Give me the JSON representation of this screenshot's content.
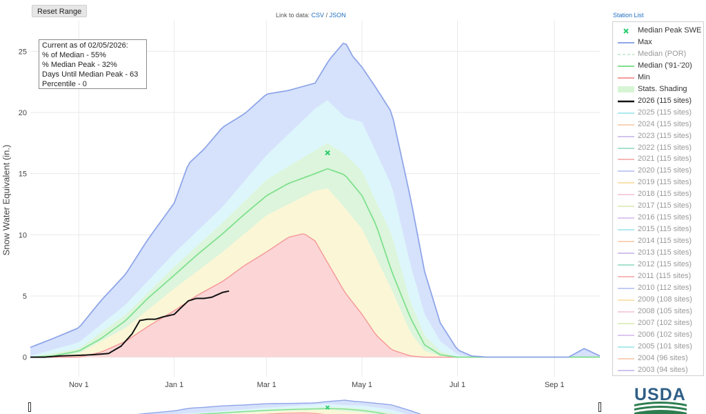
{
  "controls": {
    "reset_range_label": "Reset Range",
    "link_prefix": "Link to data: ",
    "csv_label": "CSV",
    "link_sep": " / ",
    "json_label": "JSON",
    "station_list_label": "Station List"
  },
  "info_box": {
    "lines": [
      "Current as of 02/05/2026:",
      "% of Median - 55%",
      "% Median Peak - 32%",
      "Days Until Median Peak - 63",
      "Percentile - 0"
    ]
  },
  "logo": {
    "text": "USDA"
  },
  "colors": {
    "max": "#8fa5e8",
    "max_fill": "#d6e2fb",
    "p90_fill": "#dcf6fb",
    "p70_fill": "#dcf5dc",
    "p30_fill": "#fbf6d6",
    "min": "#f59a9a",
    "min_fill": "#fcd6d6",
    "median": "#7fe08e",
    "current": "#111111",
    "median_peak": "#2ecc71",
    "grid": "#e9e9e9"
  },
  "legend": [
    {
      "label": "Median Peak SWE",
      "type": "marker",
      "color": "#2ecc71",
      "muted": false
    },
    {
      "label": "Max",
      "type": "line",
      "color": "#8fa5e8",
      "muted": false
    },
    {
      "label": "Median (POR)",
      "type": "dash",
      "color": "#b9e6c0",
      "muted": true
    },
    {
      "label": "Median ('91-'20)",
      "type": "line",
      "color": "#7fe08e",
      "muted": false
    },
    {
      "label": "Min",
      "type": "line",
      "color": "#f59a9a",
      "muted": false
    },
    {
      "label": "Stats. Shading",
      "type": "fill",
      "color": "#d7f5d4",
      "muted": false
    },
    {
      "label": "2026 (115 sites)",
      "type": "thick",
      "color": "#111111",
      "muted": false
    },
    {
      "label": "2025 (115 sites)",
      "type": "line",
      "color": "#99e6ea",
      "muted": true
    },
    {
      "label": "2024 (115 sites)",
      "type": "line",
      "color": "#f8c7a8",
      "muted": true
    },
    {
      "label": "2023 (115 sites)",
      "type": "line",
      "color": "#c6b3ea",
      "muted": true
    },
    {
      "label": "2022 (115 sites)",
      "type": "line",
      "color": "#8fdcc0",
      "muted": true
    },
    {
      "label": "2021 (115 sites)",
      "type": "line",
      "color": "#f4a7a7",
      "muted": true
    },
    {
      "label": "2020 (115 sites)",
      "type": "line",
      "color": "#b3bff0",
      "muted": true
    },
    {
      "label": "2019 (115 sites)",
      "type": "line",
      "color": "#fadb9c",
      "muted": true
    },
    {
      "label": "2018 (115 sites)",
      "type": "line",
      "color": "#f4c2d9",
      "muted": true
    },
    {
      "label": "2017 (115 sites)",
      "type": "line",
      "color": "#d9ecb3",
      "muted": true
    },
    {
      "label": "2016 (115 sites)",
      "type": "line",
      "color": "#d4b8ee",
      "muted": true
    },
    {
      "label": "2015 (115 sites)",
      "type": "line",
      "color": "#99e6ea",
      "muted": true
    },
    {
      "label": "2014 (115 sites)",
      "type": "line",
      "color": "#f8c7a8",
      "muted": true
    },
    {
      "label": "2013 (115 sites)",
      "type": "line",
      "color": "#c6b3ea",
      "muted": true
    },
    {
      "label": "2012 (115 sites)",
      "type": "line",
      "color": "#8fdcc0",
      "muted": true
    },
    {
      "label": "2011 (115 sites)",
      "type": "line",
      "color": "#f4a7a7",
      "muted": true
    },
    {
      "label": "2010 (112 sites)",
      "type": "line",
      "color": "#b3bff0",
      "muted": true
    },
    {
      "label": "2009 (108 sites)",
      "type": "line",
      "color": "#fadb9c",
      "muted": true
    },
    {
      "label": "2008 (105 sites)",
      "type": "line",
      "color": "#f4c2d9",
      "muted": true
    },
    {
      "label": "2007 (102 sites)",
      "type": "line",
      "color": "#d9ecb3",
      "muted": true
    },
    {
      "label": "2006 (102 sites)",
      "type": "line",
      "color": "#d4b8ee",
      "muted": true
    },
    {
      "label": "2005 (101 sites)",
      "type": "line",
      "color": "#99e6ea",
      "muted": true
    },
    {
      "label": "2004 (96 sites)",
      "type": "line",
      "color": "#f8c7a8",
      "muted": true
    },
    {
      "label": "2003 (94 sites)",
      "type": "line",
      "color": "#c6b3ea",
      "muted": true
    }
  ],
  "chart_data": {
    "type": "area",
    "title": "",
    "xlabel": "",
    "ylabel": "Snow Water Equivalent (in.)",
    "x_ticks": [
      "Nov 1",
      "Jan 1",
      "Mar 1",
      "May 1",
      "Jul 1",
      "Sep 1"
    ],
    "x_range": [
      "10/01",
      "09/30"
    ],
    "y_ticks": [
      0,
      5,
      10,
      15,
      20,
      25
    ],
    "ylim": [
      -1.6,
      27.5
    ],
    "grid": true,
    "median_peak": {
      "date": "04/09",
      "value": 16.7
    },
    "series": [
      {
        "name": "Max",
        "x": [
          "10/01",
          "10/15",
          "11/01",
          "11/15",
          "12/01",
          "12/15",
          "01/01",
          "01/10",
          "01/20",
          "02/01",
          "02/15",
          "03/01",
          "03/15",
          "04/01",
          "04/10",
          "04/20",
          "04/25",
          "05/01",
          "05/10",
          "05/20",
          "06/01",
          "06/10",
          "06/20",
          "07/01",
          "07/10",
          "07/20",
          "08/01",
          "08/15",
          "09/01",
          "09/10",
          "09/20",
          "09/30"
        ],
        "y": [
          0.8,
          1.5,
          2.4,
          4.6,
          6.8,
          9.6,
          12.6,
          15.8,
          17.0,
          18.8,
          19.9,
          21.5,
          21.8,
          22.4,
          24.3,
          25.8,
          24.6,
          23.7,
          22.0,
          20.0,
          13.0,
          7.0,
          2.8,
          0.6,
          0.1,
          0.0,
          0.0,
          0.0,
          0.0,
          0.0,
          0.7,
          0.1
        ]
      },
      {
        "name": "Median ('91-'20)",
        "x": [
          "10/01",
          "10/15",
          "11/01",
          "11/15",
          "12/01",
          "12/15",
          "01/01",
          "01/15",
          "02/01",
          "02/15",
          "03/01",
          "03/15",
          "04/01",
          "04/09",
          "04/20",
          "05/01",
          "05/10",
          "05/20",
          "06/01",
          "06/10",
          "06/20",
          "07/01",
          "07/10",
          "07/20",
          "08/01",
          "09/30"
        ],
        "y": [
          0.0,
          0.1,
          0.5,
          1.5,
          3.0,
          4.8,
          6.7,
          8.3,
          10.1,
          11.7,
          13.2,
          14.2,
          15.0,
          15.4,
          14.9,
          13.2,
          10.8,
          7.0,
          3.2,
          1.0,
          0.2,
          0.0,
          0.0,
          0.0,
          0.0,
          0.0
        ]
      },
      {
        "name": "Min",
        "x": [
          "10/01",
          "10/15",
          "11/01",
          "11/15",
          "12/01",
          "12/15",
          "01/01",
          "01/15",
          "02/01",
          "02/15",
          "03/01",
          "03/15",
          "03/25",
          "04/01",
          "04/10",
          "04/20",
          "05/01",
          "05/10",
          "05/20",
          "06/01",
          "06/10",
          "06/20",
          "07/01",
          "09/30"
        ],
        "y": [
          0.0,
          0.0,
          0.0,
          0.4,
          1.3,
          2.5,
          3.8,
          5.0,
          6.2,
          7.5,
          8.6,
          9.8,
          10.1,
          9.5,
          7.5,
          5.3,
          3.5,
          1.8,
          0.6,
          0.1,
          0.0,
          0.0,
          0.0,
          0.0
        ]
      },
      {
        "name": "2026 (115 sites)",
        "x": [
          "10/01",
          "10/10",
          "10/20",
          "11/01",
          "11/10",
          "11/20",
          "11/28",
          "12/05",
          "12/10",
          "12/15",
          "12/20",
          "12/25",
          "01/01",
          "01/05",
          "01/10",
          "01/15",
          "01/20",
          "01/25",
          "02/01",
          "02/05"
        ],
        "y": [
          0.0,
          0.0,
          0.1,
          0.15,
          0.2,
          0.3,
          0.9,
          1.9,
          3.0,
          3.1,
          3.1,
          3.3,
          3.5,
          4.0,
          4.6,
          4.8,
          4.8,
          4.9,
          5.3,
          5.4
        ]
      }
    ],
    "bands": [
      {
        "name": "90th percentile",
        "x": [
          "10/01",
          "11/01",
          "12/01",
          "01/01",
          "02/01",
          "03/01",
          "04/01",
          "04/09",
          "04/20",
          "05/01",
          "05/20",
          "06/01",
          "06/10",
          "06/20",
          "07/01",
          "07/10",
          "09/30"
        ],
        "y": [
          0.1,
          1.2,
          4.3,
          8.5,
          12.3,
          16.5,
          20.3,
          21.0,
          19.6,
          19.2,
          14.0,
          7.5,
          3.5,
          1.3,
          0.2,
          0.0,
          0.0
        ]
      },
      {
        "name": "70th percentile",
        "x": [
          "10/01",
          "11/01",
          "12/01",
          "01/01",
          "02/01",
          "03/01",
          "04/01",
          "04/09",
          "04/20",
          "05/01",
          "05/20",
          "06/01",
          "06/10",
          "06/20",
          "07/01",
          "07/10",
          "09/30"
        ],
        "y": [
          0.0,
          0.7,
          3.5,
          7.4,
          11.0,
          14.5,
          16.9,
          17.5,
          16.6,
          15.2,
          10.0,
          4.5,
          1.8,
          0.5,
          0.0,
          0.0,
          0.0
        ]
      },
      {
        "name": "30th percentile",
        "x": [
          "10/01",
          "11/01",
          "12/01",
          "01/01",
          "02/01",
          "03/01",
          "04/01",
          "04/09",
          "04/20",
          "05/01",
          "05/20",
          "06/01",
          "06/10",
          "06/20",
          "07/01",
          "09/30"
        ],
        "y": [
          0.0,
          0.3,
          2.4,
          5.6,
          8.6,
          11.6,
          13.6,
          13.8,
          12.2,
          10.5,
          5.5,
          2.0,
          0.5,
          0.1,
          0.0,
          0.0
        ]
      }
    ]
  }
}
